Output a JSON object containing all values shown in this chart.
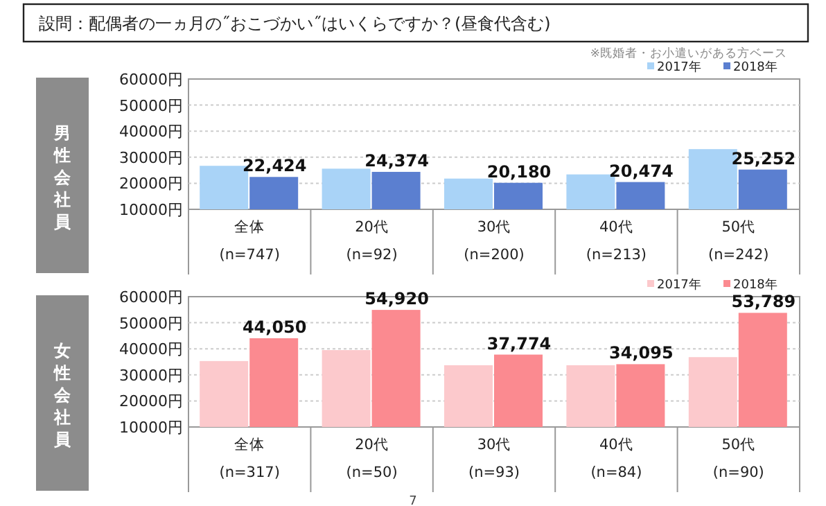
{
  "chart_data": [
    {
      "type": "bar",
      "title": "設問：配偶者の一ヵ月の˝おこづかい˝はいくらですか？(昼食代含む)",
      "ylabel": "男性会社員",
      "annotations": [
        "※既婚者・お小遣いがある方ベース"
      ],
      "categories": [
        "全体\n(n=747)",
        "20代\n(n=92)",
        "30代\n(n=200)",
        "40代\n(n=213)",
        "50代\n(n=242)"
      ],
      "series": [
        {
          "name": "2017年",
          "color": "#a9d3f7",
          "values": [
            26700,
            25600,
            21800,
            23400,
            33100
          ]
        },
        {
          "name": "2018年",
          "color": "#5b7fd0",
          "values": [
            22424,
            24374,
            20180,
            20474,
            25252
          ],
          "value_labels": [
            "22,424",
            "24,374",
            "20,180",
            "20,474",
            "25,252"
          ]
        }
      ],
      "ylim": [
        10000,
        60000
      ],
      "yticks": [
        {
          "value": 10000,
          "label": "10000円"
        },
        {
          "value": 20000,
          "label": "20000円"
        },
        {
          "value": 30000,
          "label": "30000円"
        },
        {
          "value": 40000,
          "label": "40000円"
        },
        {
          "value": 50000,
          "label": "50000円"
        },
        {
          "value": 60000,
          "label": "60000円"
        }
      ],
      "grid": "y",
      "legend": "top right"
    },
    {
      "type": "bar",
      "ylabel": "女性会社員",
      "annotations": [
        "7"
      ],
      "categories": [
        "全体\n(n=317)",
        "20代\n(n=50)",
        "30代\n(n=93)",
        "40代\n(n=84)",
        "50代\n(n=90)"
      ],
      "series": [
        {
          "name": "2017年",
          "color": "#fcc9cc",
          "values": [
            35300,
            39500,
            33700,
            33700,
            36800
          ]
        },
        {
          "name": "2018年",
          "color": "#fb8a90",
          "values": [
            44050,
            54920,
            37774,
            34095,
            53789
          ],
          "value_labels": [
            "44,050",
            "54,920",
            "37,774",
            "34,095",
            "53,789"
          ]
        }
      ],
      "ylim": [
        10000,
        60000
      ],
      "yticks": [
        {
          "value": 10000,
          "label": "10000円"
        },
        {
          "value": 20000,
          "label": "20000円"
        },
        {
          "value": 30000,
          "label": "30000円"
        },
        {
          "value": 40000,
          "label": "40000円"
        },
        {
          "value": 50000,
          "label": "50000円"
        },
        {
          "value": 60000,
          "label": "60000円"
        }
      ],
      "grid": "y",
      "legend": "top right"
    }
  ]
}
